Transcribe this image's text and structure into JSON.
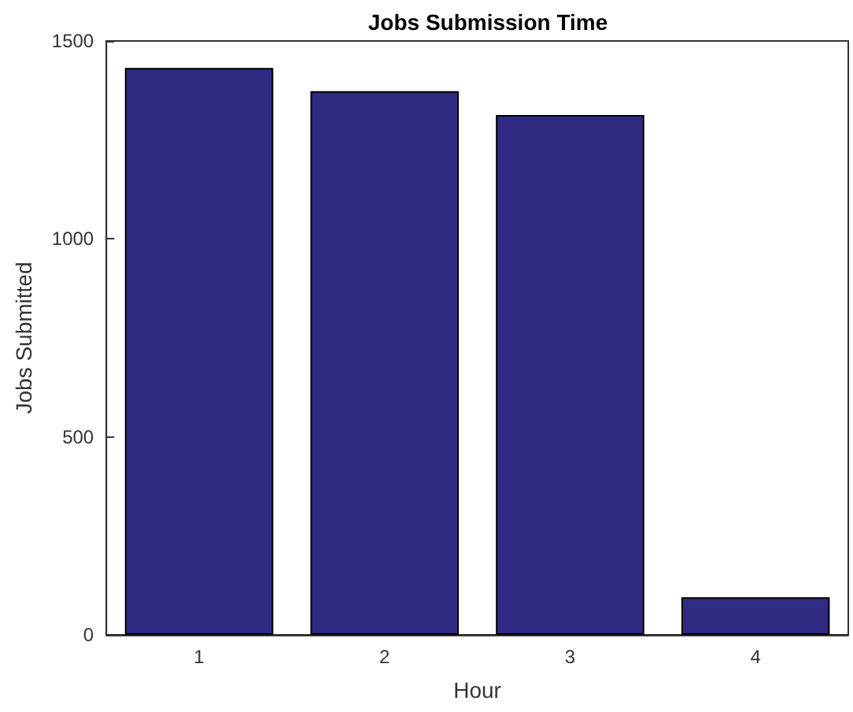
{
  "chart_data": {
    "type": "bar",
    "title": "Jobs Submission Time",
    "xlabel": "Hour",
    "ylabel": "Jobs Submitted",
    "categories": [
      "1",
      "2",
      "3",
      "4"
    ],
    "values": [
      1432,
      1373,
      1313,
      95
    ],
    "color": "#312a82",
    "ylim": [
      0,
      1500
    ],
    "yticks": [
      0,
      500,
      1000,
      1500
    ],
    "grid": false
  }
}
